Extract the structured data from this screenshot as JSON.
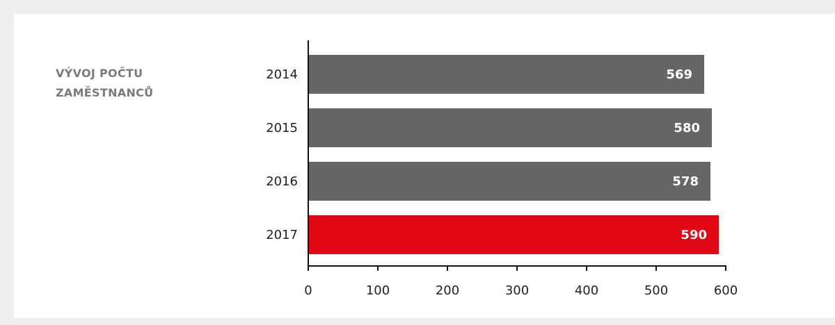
{
  "chart_data": {
    "type": "hbar",
    "title": "VÝVOJ POČTU ZAMĚSTNANCŮ",
    "categories": [
      "2014",
      "2015",
      "2016",
      "2017"
    ],
    "values": [
      569,
      580,
      578,
      590
    ],
    "colors": [
      "#666666",
      "#666666",
      "#666666",
      "#e10613"
    ],
    "xlim": [
      0,
      600
    ],
    "xticks": [
      0,
      100,
      200,
      300,
      400,
      500,
      600
    ]
  }
}
